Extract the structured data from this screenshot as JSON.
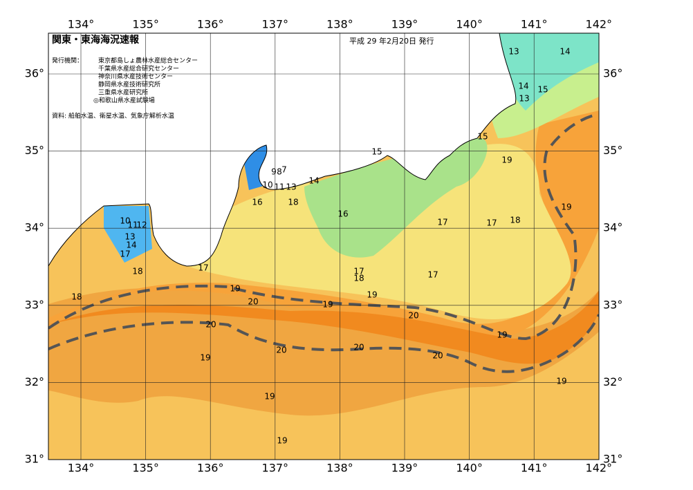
{
  "header": {
    "title": "関東・東海海況速報",
    "date": "平成 29 年2月20日 発行",
    "issuer_label": "発行機関：",
    "issuers": [
      "東京都島しょ農林水産総合センター",
      "千葉県水産総合研究センター",
      "神奈川県水産技術センター",
      "静岡県水産技術研究所",
      "三重県水産研究所",
      "◎和歌山県水産試験場"
    ],
    "source": "資料: 船舶水温、衛星水温、気象庁解析水温"
  },
  "map": {
    "lon_labels": [
      "134°",
      "135°",
      "136°",
      "137°",
      "138°",
      "139°",
      "140°",
      "141°",
      "142°"
    ],
    "lat_labels": [
      "36°",
      "35°",
      "34°",
      "33°",
      "32°",
      "31°"
    ],
    "contour_labels": [
      "13",
      "14",
      "14",
      "15",
      "13",
      "15",
      "15",
      "19",
      "9",
      "8",
      "7",
      "14",
      "10",
      "11",
      "13",
      "16",
      "18",
      "16",
      "19",
      "17",
      "17",
      "18",
      "10",
      "11",
      "12",
      "13",
      "14",
      "17",
      "18",
      "17",
      "17",
      "18",
      "17",
      "18",
      "19",
      "19",
      "20",
      "19",
      "20",
      "20",
      "19",
      "20",
      "20",
      "20",
      "19",
      "19",
      "19",
      "19"
    ]
  }
}
